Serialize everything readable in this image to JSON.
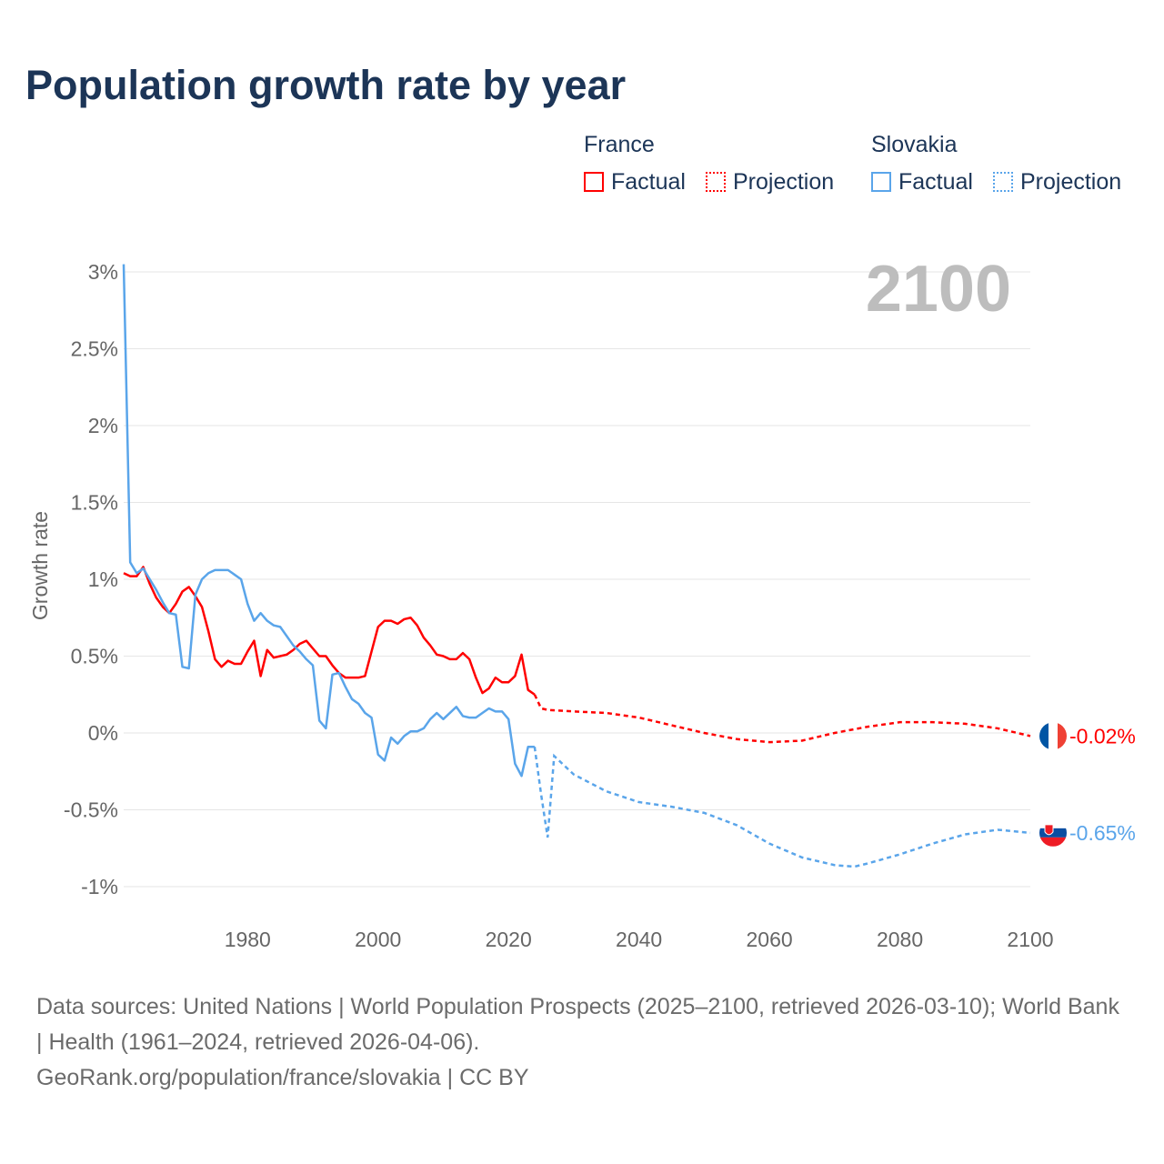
{
  "chart_data": {
    "type": "line",
    "title": "Population growth rate by year",
    "ylabel": "Growth rate",
    "xlabel": "",
    "xlim": [
      1961,
      2100
    ],
    "ylim": [
      -1.15,
      3.1
    ],
    "yticks": [
      {
        "v": 3,
        "l": "3%"
      },
      {
        "v": 2.5,
        "l": "2.5%"
      },
      {
        "v": 2,
        "l": "2%"
      },
      {
        "v": 1.5,
        "l": "1.5%"
      },
      {
        "v": 1,
        "l": "1%"
      },
      {
        "v": 0.5,
        "l": "0.5%"
      },
      {
        "v": 0,
        "l": "0%"
      },
      {
        "v": -0.5,
        "l": "-0.5%"
      },
      {
        "v": -1,
        "l": "-1%"
      }
    ],
    "xticks": [
      1980,
      2000,
      2020,
      2040,
      2060,
      2080,
      2100
    ],
    "year_label": "2100",
    "legend": {
      "position": "top-right",
      "groups": [
        {
          "name": "France",
          "factual": "Factual",
          "projection": "Projection"
        },
        {
          "name": "Slovakia",
          "factual": "Factual",
          "projection": "Projection"
        }
      ]
    },
    "series": [
      {
        "name": "France",
        "color": "#ff0000",
        "end_label": "-0.02%",
        "factual": {
          "start": 1961,
          "values": [
            1.04,
            1.02,
            1.02,
            1.08,
            0.97,
            0.88,
            0.82,
            0.78,
            0.84,
            0.92,
            0.95,
            0.89,
            0.82,
            0.66,
            0.48,
            0.43,
            0.47,
            0.45,
            0.45,
            0.53,
            0.6,
            0.37,
            0.54,
            0.49,
            0.5,
            0.51,
            0.54,
            0.58,
            0.6,
            0.55,
            0.5,
            0.5,
            0.44,
            0.39,
            0.36,
            0.36,
            0.36,
            0.37,
            0.53,
            0.69,
            0.73,
            0.73,
            0.71,
            0.74,
            0.75,
            0.7,
            0.62,
            0.57,
            0.51,
            0.5,
            0.48,
            0.48,
            0.52,
            0.48,
            0.36,
            0.26,
            0.29,
            0.36,
            0.33,
            0.33,
            0.37,
            0.51,
            0.28,
            0.25
          ]
        },
        "projection": {
          "x": [
            2024,
            2025,
            2026,
            2030,
            2035,
            2040,
            2045,
            2050,
            2055,
            2060,
            2065,
            2070,
            2075,
            2080,
            2085,
            2090,
            2095,
            2100
          ],
          "y": [
            0.25,
            0.16,
            0.15,
            0.14,
            0.13,
            0.1,
            0.05,
            0.0,
            -0.04,
            -0.06,
            -0.05,
            0.0,
            0.04,
            0.07,
            0.07,
            0.06,
            0.03,
            -0.02
          ]
        }
      },
      {
        "name": "Slovakia",
        "color": "#5aa5ea",
        "end_label": "-0.65%",
        "factual": {
          "start": 1961,
          "values": [
            3.05,
            1.11,
            1.04,
            1.07,
            1.0,
            0.93,
            0.85,
            0.78,
            0.77,
            0.43,
            0.42,
            0.9,
            1.0,
            1.04,
            1.06,
            1.06,
            1.06,
            1.03,
            1.0,
            0.84,
            0.73,
            0.78,
            0.73,
            0.7,
            0.69,
            0.63,
            0.57,
            0.53,
            0.48,
            0.44,
            0.08,
            0.03,
            0.38,
            0.39,
            0.3,
            0.22,
            0.19,
            0.13,
            0.1,
            -0.14,
            -0.18,
            -0.03,
            -0.07,
            -0.02,
            0.01,
            0.01,
            0.03,
            0.09,
            0.13,
            0.09,
            0.13,
            0.17,
            0.11,
            0.1,
            0.1,
            0.13,
            0.16,
            0.14,
            0.14,
            0.09,
            -0.2,
            -0.28,
            -0.09,
            -0.09
          ]
        },
        "projection": {
          "x": [
            2024,
            2025,
            2026,
            2027,
            2030,
            2035,
            2040,
            2045,
            2050,
            2055,
            2060,
            2065,
            2070,
            2073,
            2075,
            2080,
            2085,
            2090,
            2095,
            2100
          ],
          "y": [
            -0.09,
            -0.4,
            -0.68,
            -0.15,
            -0.27,
            -0.38,
            -0.45,
            -0.48,
            -0.52,
            -0.6,
            -0.72,
            -0.81,
            -0.86,
            -0.87,
            -0.85,
            -0.79,
            -0.72,
            -0.66,
            -0.63,
            -0.65
          ]
        }
      }
    ]
  },
  "footer": {
    "line1": "Data sources: United Nations | World Population Prospects (2025–2100, retrieved 2026-03-10); World Bank | Health (1961–2024, retrieved 2026-04-06).",
    "line2": "GeoRank.org/population/france/slovakia | CC BY"
  }
}
